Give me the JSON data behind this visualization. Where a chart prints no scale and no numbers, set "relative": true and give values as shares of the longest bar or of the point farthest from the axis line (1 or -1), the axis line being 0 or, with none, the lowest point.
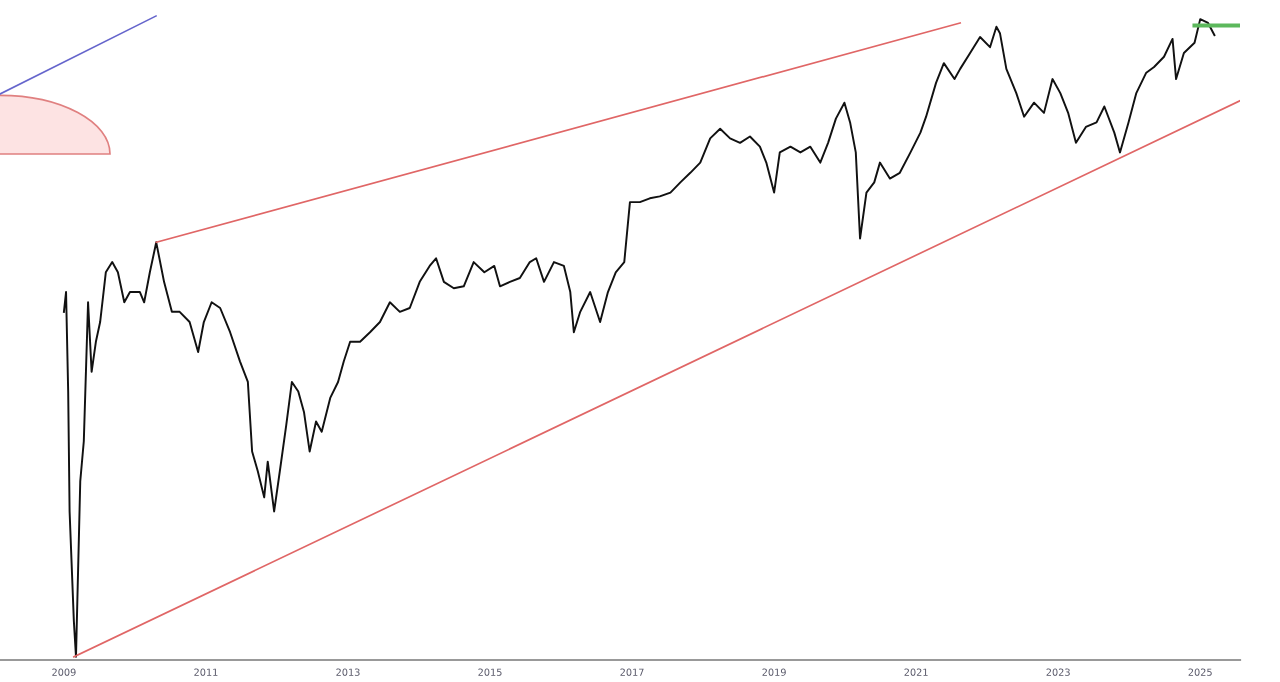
{
  "chart_data": {
    "type": "line",
    "relative": true,
    "legend": false,
    "grid": false,
    "marker": "none",
    "line_style": "solid",
    "xlim": [
      2008.1,
      2025.56
    ],
    "xticks": [
      2009,
      2011,
      2013,
      2015,
      2017,
      2019,
      2021,
      2023,
      2025
    ],
    "series": [
      {
        "color": "#111111",
        "x": [
          2009.0,
          2009.03,
          2009.06,
          2009.08,
          2009.14,
          2009.17,
          2009.23,
          2009.28,
          2009.34,
          2009.39,
          2009.45,
          2009.51,
          2009.59,
          2009.68,
          2009.76,
          2009.85,
          2009.93,
          2010.07,
          2010.13,
          2010.21,
          2010.3,
          2010.41,
          2010.52,
          2010.63,
          2010.77,
          2010.89,
          2010.97,
          2011.08,
          2011.2,
          2011.34,
          2011.48,
          2011.59,
          2011.65,
          2011.73,
          2011.82,
          2011.87,
          2011.96,
          2012.04,
          2012.13,
          2012.21,
          2012.3,
          2012.38,
          2012.46,
          2012.55,
          2012.63,
          2012.75,
          2012.86,
          2012.94,
          2013.03,
          2013.17,
          2013.31,
          2013.45,
          2013.59,
          2013.73,
          2013.87,
          2014.01,
          2014.15,
          2014.24,
          2014.35,
          2014.49,
          2014.63,
          2014.77,
          2014.92,
          2015.06,
          2015.14,
          2015.28,
          2015.42,
          2015.56,
          2015.65,
          2015.76,
          2015.9,
          2016.04,
          2016.13,
          2016.18,
          2016.27,
          2016.41,
          2016.55,
          2016.66,
          2016.77,
          2016.89,
          2016.97,
          2017.06,
          2017.11,
          2017.25,
          2017.39,
          2017.54,
          2017.68,
          2017.82,
          2017.96,
          2018.1,
          2018.24,
          2018.38,
          2018.52,
          2018.66,
          2018.8,
          2018.89,
          2019.0,
          2019.08,
          2019.23,
          2019.37,
          2019.51,
          2019.65,
          2019.76,
          2019.87,
          2019.99,
          2020.07,
          2020.15,
          2020.21,
          2020.3,
          2020.41,
          2020.49,
          2020.63,
          2020.77,
          2020.92,
          2021.06,
          2021.14,
          2021.28,
          2021.39,
          2021.54,
          2021.62,
          2021.76,
          2021.9,
          2022.04,
          2022.13,
          2022.18,
          2022.27,
          2022.41,
          2022.52,
          2022.66,
          2022.8,
          2022.92,
          2023.03,
          2023.14,
          2023.25,
          2023.39,
          2023.54,
          2023.65,
          2023.79,
          2023.87,
          2023.99,
          2024.1,
          2024.24,
          2024.35,
          2024.49,
          2024.61,
          2024.66,
          2024.77,
          2024.92,
          2025.0,
          2025.11,
          2025.2
        ],
        "values": [
          0.541,
          0.572,
          0.416,
          0.228,
          0.056,
          0,
          0.275,
          0.338,
          0.556,
          0.447,
          0.494,
          0.525,
          0.603,
          0.619,
          0.603,
          0.556,
          0.572,
          0.572,
          0.556,
          0.603,
          0.65,
          0.588,
          0.541,
          0.541,
          0.525,
          0.478,
          0.525,
          0.556,
          0.547,
          0.509,
          0.463,
          0.431,
          0.322,
          0.291,
          0.25,
          0.306,
          0.228,
          0.291,
          0.363,
          0.431,
          0.416,
          0.384,
          0.322,
          0.369,
          0.353,
          0.406,
          0.431,
          0.463,
          0.494,
          0.494,
          0.509,
          0.525,
          0.556,
          0.541,
          0.547,
          0.588,
          0.613,
          0.625,
          0.588,
          0.578,
          0.581,
          0.619,
          0.603,
          0.613,
          0.581,
          0.588,
          0.594,
          0.619,
          0.625,
          0.588,
          0.619,
          0.613,
          0.572,
          0.509,
          0.541,
          0.572,
          0.525,
          0.572,
          0.603,
          0.619,
          0.713,
          0.713,
          0.713,
          0.719,
          0.722,
          0.728,
          0.744,
          0.759,
          0.775,
          0.813,
          0.828,
          0.813,
          0.806,
          0.816,
          0.8,
          0.775,
          0.728,
          0.791,
          0.8,
          0.791,
          0.8,
          0.775,
          0.806,
          0.844,
          0.869,
          0.838,
          0.791,
          0.656,
          0.728,
          0.744,
          0.775,
          0.75,
          0.759,
          0.791,
          0.822,
          0.847,
          0.9,
          0.931,
          0.906,
          0.922,
          0.947,
          0.972,
          0.956,
          0.988,
          0.978,
          0.922,
          0.884,
          0.847,
          0.869,
          0.853,
          0.906,
          0.884,
          0.853,
          0.806,
          0.831,
          0.838,
          0.863,
          0.822,
          0.791,
          0.838,
          0.884,
          0.916,
          0.925,
          0.941,
          0.969,
          0.906,
          0.947,
          0.963,
          1.0,
          0.994,
          0.975
        ]
      },
      {
        "type": "line",
        "color": "#e06666",
        "x": [
          2010.3,
          2021.62
        ],
        "values": [
          0.65,
          0.994
        ]
      },
      {
        "type": "line",
        "color": "#e06666",
        "x": [
          2009.14,
          2025.56
        ],
        "values": [
          0,
          0.872
        ]
      },
      {
        "type": "line",
        "color": "#5cb85c",
        "x": [
          2024.92,
          2025.56
        ],
        "values": [
          0.99,
          0.99
        ]
      }
    ]
  }
}
